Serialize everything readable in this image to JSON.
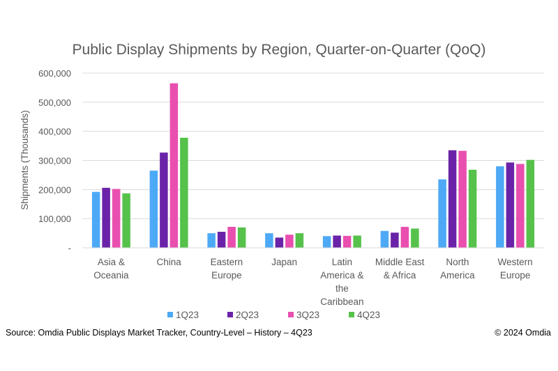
{
  "chart_data": {
    "type": "bar",
    "title": "Public Display Shipments by Region, Quarter-on-Quarter (QoQ)",
    "ylabel": "Shipments (Thousands)",
    "xlabel": "",
    "ylim": [
      0,
      600000
    ],
    "yticks": [
      {
        "value": 0,
        "label": "-"
      },
      {
        "value": 100000,
        "label": "100,000"
      },
      {
        "value": 200000,
        "label": "200,000"
      },
      {
        "value": 300000,
        "label": "300,000"
      },
      {
        "value": 400000,
        "label": "400,000"
      },
      {
        "value": 500000,
        "label": "500,000"
      },
      {
        "value": 600000,
        "label": "600,000"
      }
    ],
    "grid": true,
    "legend_position": "bottom",
    "categories": [
      [
        "Asia &",
        "Oceania"
      ],
      [
        "China"
      ],
      [
        "Eastern",
        "Europe"
      ],
      [
        "Japan"
      ],
      [
        "Latin",
        "America &",
        "the",
        "Caribbean"
      ],
      [
        "Middle East",
        "& Africa"
      ],
      [
        "North",
        "America"
      ],
      [
        "Western",
        "Europe"
      ]
    ],
    "series": [
      {
        "name": "1Q23",
        "color": "#4DA9F5",
        "values": [
          192000,
          265000,
          50000,
          50000,
          40000,
          58000,
          235000,
          280000
        ]
      },
      {
        "name": "2Q23",
        "color": "#6A23A8",
        "values": [
          206000,
          327000,
          55000,
          35000,
          42000,
          52000,
          335000,
          293000
        ]
      },
      {
        "name": "3Q23",
        "color": "#E94FAF",
        "values": [
          202000,
          565000,
          72000,
          45000,
          41000,
          72000,
          333000,
          288000
        ]
      },
      {
        "name": "4Q23",
        "color": "#56C24B",
        "values": [
          187000,
          378000,
          70000,
          50000,
          42000,
          66000,
          268000,
          302000
        ]
      }
    ]
  },
  "footer": {
    "source": "Source: Omdia Public Displays Market Tracker, Country-Level – History – 4Q23",
    "copyright": "© 2024 Omdia"
  }
}
